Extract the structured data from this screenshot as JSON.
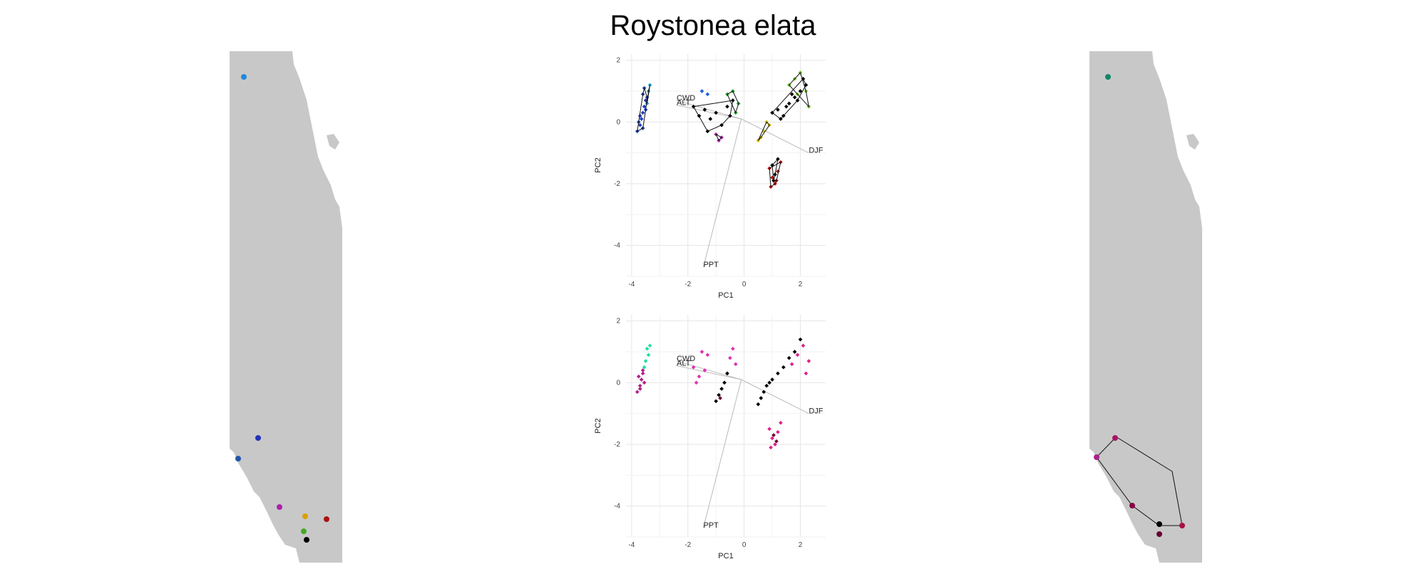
{
  "title": "Roystonea elata",
  "chart_data": [
    {
      "type": "scatter",
      "panel": "pca-top",
      "xlabel": "PC1",
      "ylabel": "PC2",
      "xlim": [
        -4.2,
        2.9
      ],
      "ylim": [
        -5.0,
        2.2
      ],
      "xticks": [
        -4,
        -2,
        0,
        2
      ],
      "xtick_labels": [
        "-4",
        "-2",
        "0",
        "2"
      ],
      "yticks": [
        -4,
        -2,
        0,
        2
      ],
      "ytick_labels": [
        "-4",
        "-2",
        "0",
        "2"
      ],
      "grid": true,
      "origin": [
        -0.1,
        0.1
      ],
      "loadings": [
        {
          "label": "CWD",
          "x": -2.4,
          "y": 0.7
        },
        {
          "label": "ALT",
          "x": -2.4,
          "y": 0.55
        },
        {
          "label": "DJF",
          "x": 2.3,
          "y": -1.0
        },
        {
          "label": "PPT",
          "x": -1.45,
          "y": -4.7
        }
      ],
      "series": [
        {
          "color": "#1f3fbf",
          "x": [
            -3.8,
            -3.7,
            -3.65,
            -3.6,
            -3.55,
            -3.75,
            -3.5,
            -3.6,
            -3.7,
            -3.6,
            -3.55,
            -3.45,
            -3.5
          ],
          "y": [
            -0.3,
            -0.1,
            0.1,
            0.3,
            0.5,
            0.0,
            0.7,
            -0.2,
            0.2,
            0.9,
            1.1,
            0.8,
            0.4
          ]
        },
        {
          "color": "#1fa0c0",
          "x": [
            -3.4,
            -3.35,
            -3.45
          ],
          "y": [
            1.0,
            1.2,
            0.6
          ]
        },
        {
          "color": "#000000",
          "x": [
            -1.8,
            -1.6,
            -1.4,
            -1.2,
            -1.0,
            -0.8,
            -0.6,
            -0.5,
            -0.4,
            -1.3
          ],
          "y": [
            0.5,
            0.2,
            0.4,
            0.1,
            0.3,
            -0.1,
            0.5,
            0.2,
            0.7,
            -0.3
          ]
        },
        {
          "color": "#2aa02a",
          "x": [
            -0.6,
            -0.4,
            -0.3,
            -0.2
          ],
          "y": [
            0.9,
            1.0,
            0.3,
            0.6
          ]
        },
        {
          "color": "#b020b0",
          "x": [
            -0.9,
            -1.0,
            -0.8
          ],
          "y": [
            -0.6,
            -0.4,
            -0.5
          ]
        },
        {
          "color": "#2060e0",
          "x": [
            -1.5,
            -1.3
          ],
          "y": [
            1.0,
            0.9
          ]
        },
        {
          "color": "#000000",
          "x": [
            1.0,
            1.2,
            1.4,
            1.6,
            1.8,
            2.0,
            2.2,
            1.7,
            1.5,
            1.9,
            2.1,
            1.3
          ],
          "y": [
            0.3,
            0.4,
            0.2,
            0.6,
            0.8,
            1.0,
            1.2,
            0.9,
            0.5,
            0.7,
            1.4,
            0.1
          ]
        },
        {
          "color": "#70c020",
          "x": [
            1.6,
            1.8,
            2.0,
            2.2,
            2.3,
            1.9
          ],
          "y": [
            1.2,
            1.4,
            1.6,
            1.0,
            0.5,
            0.9
          ]
        },
        {
          "color": "#d8c000",
          "x": [
            0.5,
            0.7,
            0.8,
            0.6,
            0.9
          ],
          "y": [
            -0.6,
            -0.3,
            0.0,
            -0.5,
            -0.1
          ]
        },
        {
          "color": "#c01010",
          "x": [
            0.9,
            1.0,
            1.1,
            1.2,
            1.3,
            0.95,
            1.15
          ],
          "y": [
            -1.5,
            -1.8,
            -2.0,
            -1.6,
            -1.3,
            -2.1,
            -1.9
          ]
        },
        {
          "color": "#000000",
          "x": [
            1.0,
            1.1,
            1.2,
            1.05
          ],
          "y": [
            -1.4,
            -1.7,
            -1.2,
            -1.9
          ]
        }
      ]
    },
    {
      "type": "scatter",
      "panel": "pca-bottom",
      "xlabel": "PC1",
      "ylabel": "PC2",
      "xlim": [
        -4.2,
        2.9
      ],
      "ylim": [
        -5.0,
        2.2
      ],
      "xticks": [
        -4,
        -2,
        0,
        2
      ],
      "xtick_labels": [
        "-4",
        "-2",
        "0",
        "2"
      ],
      "yticks": [
        -4,
        -2,
        0,
        2
      ],
      "ytick_labels": [
        "-4",
        "-2",
        "0",
        "2"
      ],
      "grid": true,
      "origin": [
        -0.1,
        0.1
      ],
      "loadings": [
        {
          "label": "CWD",
          "x": -2.4,
          "y": 0.7
        },
        {
          "label": "ALT",
          "x": -2.4,
          "y": 0.55
        },
        {
          "label": "DJF",
          "x": 2.3,
          "y": -1.0
        },
        {
          "label": "PPT",
          "x": -1.45,
          "y": -4.7
        }
      ],
      "series": [
        {
          "color": "#b0208a",
          "x": [
            -3.8,
            -3.7,
            -3.65,
            -3.6,
            -3.55,
            -3.75,
            -3.7,
            -3.6
          ],
          "y": [
            -0.3,
            -0.1,
            0.1,
            0.3,
            0.0,
            0.2,
            -0.2,
            0.4
          ]
        },
        {
          "color": "#20e0a0",
          "x": [
            -3.5,
            -3.4,
            -3.45,
            -3.55,
            -3.35
          ],
          "y": [
            0.7,
            0.9,
            1.1,
            0.5,
            1.2
          ]
        },
        {
          "color": "#e030b0",
          "x": [
            -1.8,
            -1.6,
            -1.4,
            -1.3,
            -1.5,
            -1.7,
            -0.5,
            -0.4,
            -0.3,
            -0.6
          ],
          "y": [
            0.5,
            0.2,
            0.4,
            0.9,
            1.0,
            0.0,
            0.8,
            1.1,
            0.6,
            0.3
          ]
        },
        {
          "color": "#000000",
          "x": [
            -1.0,
            -0.9,
            -0.8,
            -0.7,
            -0.6,
            0.5,
            0.6,
            0.7,
            0.8,
            0.9,
            1.0,
            1.2,
            1.4,
            1.6,
            1.8,
            2.0
          ],
          "y": [
            -0.6,
            -0.4,
            -0.2,
            0.0,
            0.3,
            -0.7,
            -0.5,
            -0.3,
            -0.1,
            0.0,
            0.1,
            0.3,
            0.5,
            0.8,
            1.0,
            1.4
          ]
        },
        {
          "color": "#e0208a",
          "x": [
            1.7,
            1.9,
            2.1,
            2.2,
            2.3,
            0.9,
            1.0,
            1.1,
            1.2,
            1.3,
            0.95
          ],
          "y": [
            0.6,
            0.9,
            1.2,
            0.3,
            0.7,
            -1.5,
            -1.8,
            -2.0,
            -1.6,
            -1.3,
            -2.1
          ]
        },
        {
          "color": "#700030",
          "x": [
            1.05,
            1.15,
            -0.85
          ],
          "y": [
            -1.7,
            -1.9,
            -0.5
          ]
        }
      ]
    }
  ]
}
